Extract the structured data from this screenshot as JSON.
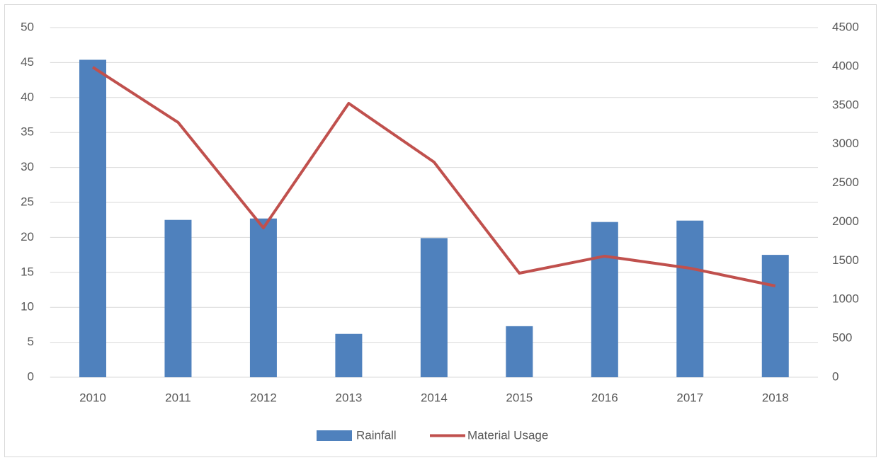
{
  "chart_data": {
    "type": "bar_line",
    "categories": [
      "2010",
      "2011",
      "2012",
      "2013",
      "2014",
      "2015",
      "2016",
      "2017",
      "2018"
    ],
    "series": [
      {
        "name": "Rainfall",
        "color": "#4f81bd",
        "type": "bar",
        "values": [
          45.4,
          22.5,
          22.7,
          6.2,
          19.9,
          7.3,
          22.2,
          22.4,
          17.5
        ]
      },
      {
        "name": "Material Usage",
        "color": "#c0504d",
        "type": "line",
        "axis": "y2",
        "values": [
          3990,
          3280,
          1922,
          3525,
          2769,
          1339,
          1558,
          1403,
          1175
        ]
      }
    ],
    "ylim": [
      0,
      50
    ],
    "yticks": [
      0,
      5,
      10,
      15,
      20,
      25,
      30,
      35,
      40,
      45,
      50
    ],
    "y2lim": [
      0,
      4500
    ],
    "y2ticks": [
      0,
      500,
      1000,
      1500,
      2000,
      2500,
      3000,
      3500,
      4000,
      4500
    ],
    "grid": true,
    "legend": "bottom"
  }
}
